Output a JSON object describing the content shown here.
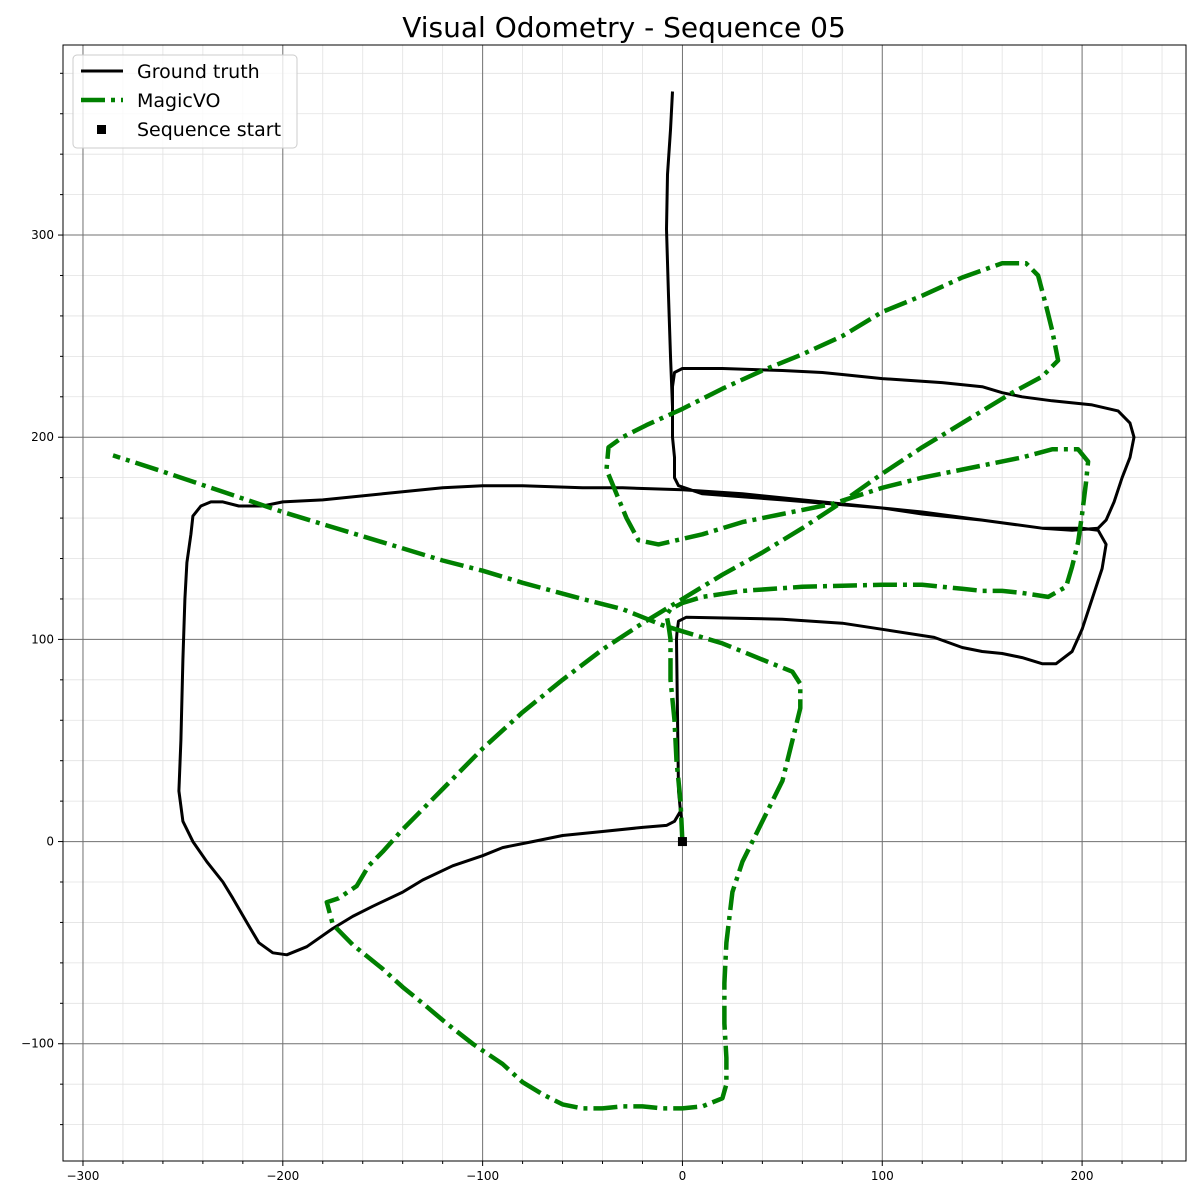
{
  "chart_data": {
    "type": "line",
    "title": "Visual Odometry - Sequence 05",
    "xlabel": "",
    "ylabel": "",
    "xlim": [
      -310,
      252
    ],
    "ylim": [
      -158,
      394
    ],
    "x_ticks": [
      -300,
      -200,
      -100,
      0,
      100,
      200
    ],
    "y_ticks": [
      -100,
      0,
      100,
      200,
      300
    ],
    "x_tick_labels": [
      "−300",
      "−200",
      "−100",
      "0",
      "100",
      "200"
    ],
    "y_tick_labels": [
      "−100",
      "0",
      "100",
      "200",
      "300"
    ],
    "grid": true,
    "minor_grid": true,
    "legend_position": "top-left",
    "colors": {
      "ground_truth": "#000000",
      "magicvo": "#008000",
      "start": "#000000"
    },
    "legend": [
      {
        "label": "Ground truth",
        "style": "solid",
        "color": "#000000"
      },
      {
        "label": "MagicVO",
        "style": "dashdot",
        "color": "#008000"
      },
      {
        "label": "Sequence start",
        "style": "marker-square",
        "color": "#000000"
      }
    ],
    "series": [
      {
        "name": "Ground truth",
        "style": "solid",
        "color": "#000000",
        "points": [
          [
            0,
            0
          ],
          [
            -0.5,
            12
          ],
          [
            -1,
            15
          ],
          [
            -2,
            25
          ],
          [
            -2.2,
            40
          ],
          [
            -2.6,
            70
          ],
          [
            -3,
            100
          ],
          [
            -2.8,
            103
          ],
          [
            -2,
            109
          ],
          [
            2,
            111
          ],
          [
            50,
            110
          ],
          [
            80,
            108
          ],
          [
            100,
            105
          ],
          [
            126,
            101
          ],
          [
            140,
            96
          ],
          [
            150,
            94
          ],
          [
            160,
            93
          ],
          [
            170,
            91
          ],
          [
            180,
            88
          ],
          [
            187,
            88
          ],
          [
            195,
            94
          ],
          [
            200,
            105
          ],
          [
            210,
            135
          ],
          [
            212,
            147
          ],
          [
            208,
            154
          ],
          [
            200,
            155
          ],
          [
            180,
            155
          ],
          [
            150,
            159
          ],
          [
            120,
            163
          ],
          [
            100,
            165
          ],
          [
            50,
            169
          ],
          [
            10,
            172
          ],
          [
            -2,
            176
          ],
          [
            -4,
            180
          ],
          [
            -4,
            190
          ],
          [
            -5,
            200
          ],
          [
            -5,
            215
          ],
          [
            -5,
            225
          ],
          [
            -4,
            232
          ],
          [
            0,
            234
          ],
          [
            20,
            234
          ],
          [
            50,
            233
          ],
          [
            70,
            232
          ],
          [
            80,
            231
          ],
          [
            100,
            229
          ],
          [
            130,
            227
          ],
          [
            150,
            225
          ],
          [
            160,
            222
          ],
          [
            170,
            220
          ],
          [
            185,
            218
          ],
          [
            205,
            216
          ],
          [
            218,
            213
          ],
          [
            224,
            207
          ],
          [
            226,
            200
          ],
          [
            224,
            190
          ],
          [
            220,
            180
          ],
          [
            216,
            168
          ],
          [
            212,
            159
          ],
          [
            208,
            155
          ],
          [
            195,
            154
          ],
          [
            180,
            155
          ],
          [
            150,
            159
          ],
          [
            120,
            162
          ],
          [
            100,
            165
          ],
          [
            60,
            169
          ],
          [
            30,
            172
          ],
          [
            0,
            174
          ],
          [
            -30,
            175
          ],
          [
            -50,
            175
          ],
          [
            -80,
            176
          ],
          [
            -100,
            176
          ],
          [
            -120,
            175
          ],
          [
            -150,
            172
          ],
          [
            -180,
            169
          ],
          [
            -200,
            168
          ],
          [
            -210,
            166
          ],
          [
            -222,
            166
          ],
          [
            -230,
            168
          ],
          [
            -236,
            168
          ],
          [
            -241,
            166
          ],
          [
            -245,
            161
          ],
          [
            -246,
            152
          ],
          [
            -248,
            138
          ],
          [
            -249,
            120
          ],
          [
            -250,
            90
          ],
          [
            -251,
            50
          ],
          [
            -252,
            25
          ],
          [
            -250,
            10
          ],
          [
            -245,
            0
          ],
          [
            -238,
            -10
          ],
          [
            -230,
            -20
          ],
          [
            -225,
            -28
          ],
          [
            -218,
            -40
          ],
          [
            -212,
            -50
          ],
          [
            -205,
            -55
          ],
          [
            -198,
            -56
          ],
          [
            -188,
            -52
          ],
          [
            -175,
            -43
          ],
          [
            -165,
            -37
          ],
          [
            -155,
            -32
          ],
          [
            -140,
            -25
          ],
          [
            -130,
            -19
          ],
          [
            -115,
            -12
          ],
          [
            -100,
            -7
          ],
          [
            -90,
            -3
          ],
          [
            -75,
            0
          ],
          [
            -60,
            3
          ],
          [
            -40,
            5
          ],
          [
            -20,
            7
          ],
          [
            -8,
            8
          ],
          [
            -4,
            10
          ],
          [
            -1,
            15
          ]
        ]
      },
      {
        "name": "Ground truth",
        "style": "solid",
        "color": "#000000",
        "points": [
          [
            -5,
            215
          ],
          [
            -6,
            240
          ],
          [
            -7,
            270
          ],
          [
            -8,
            303
          ],
          [
            -7.5,
            330
          ],
          [
            -6,
            352
          ],
          [
            -5,
            371
          ]
        ]
      },
      {
        "name": "MagicVO",
        "style": "dashdot",
        "color": "#008000",
        "points": [
          [
            0,
            0
          ],
          [
            -1,
            20
          ],
          [
            -3,
            40
          ],
          [
            -4,
            60
          ],
          [
            -6,
            80
          ],
          [
            -6,
            100
          ],
          [
            -7,
            107
          ],
          [
            -8,
            112
          ],
          [
            -6,
            115
          ],
          [
            0,
            118
          ],
          [
            10,
            121
          ],
          [
            30,
            124
          ],
          [
            60,
            126
          ],
          [
            100,
            127
          ],
          [
            120,
            127
          ],
          [
            140,
            125
          ],
          [
            150,
            124
          ],
          [
            160,
            124
          ],
          [
            170,
            123
          ],
          [
            183,
            121
          ],
          [
            192,
            126
          ],
          [
            195,
            136
          ],
          [
            198,
            148
          ],
          [
            200,
            162
          ],
          [
            202,
            178
          ],
          [
            203,
            188
          ],
          [
            198,
            194
          ],
          [
            185,
            194
          ],
          [
            170,
            190
          ],
          [
            150,
            186
          ],
          [
            120,
            180
          ],
          [
            100,
            175
          ],
          [
            75,
            167
          ],
          [
            50,
            162
          ],
          [
            30,
            158
          ],
          [
            10,
            152
          ],
          [
            -12,
            147
          ],
          [
            -22,
            149
          ],
          [
            -28,
            160
          ],
          [
            -33,
            172
          ],
          [
            -38,
            184
          ],
          [
            -37,
            195
          ],
          [
            -30,
            200
          ],
          [
            -18,
            206
          ],
          [
            0,
            214
          ],
          [
            20,
            224
          ],
          [
            40,
            233
          ],
          [
            60,
            241
          ],
          [
            80,
            250
          ],
          [
            100,
            262
          ],
          [
            120,
            270
          ],
          [
            140,
            279
          ],
          [
            160,
            286
          ],
          [
            172,
            286
          ],
          [
            178,
            280
          ],
          [
            182,
            265
          ],
          [
            185,
            253
          ],
          [
            188,
            238
          ],
          [
            180,
            230
          ],
          [
            165,
            222
          ],
          [
            150,
            213
          ],
          [
            140,
            207
          ],
          [
            120,
            195
          ],
          [
            100,
            182
          ],
          [
            80,
            168
          ],
          [
            60,
            155
          ],
          [
            40,
            143
          ],
          [
            20,
            132
          ],
          [
            0,
            120
          ],
          [
            -20,
            108
          ],
          [
            -40,
            95
          ],
          [
            -60,
            80
          ],
          [
            -80,
            64
          ],
          [
            -100,
            46
          ],
          [
            -120,
            26
          ],
          [
            -140,
            6
          ],
          [
            -150,
            -5
          ],
          [
            -157,
            -12
          ],
          [
            -163,
            -22
          ],
          [
            -172,
            -28
          ],
          [
            -178,
            -30
          ],
          [
            -175,
            -41
          ],
          [
            -165,
            -51
          ],
          [
            -150,
            -63
          ],
          [
            -140,
            -72
          ],
          [
            -130,
            -80
          ],
          [
            -118,
            -90
          ],
          [
            -105,
            -100
          ],
          [
            -90,
            -110
          ],
          [
            -80,
            -119
          ],
          [
            -70,
            -125
          ],
          [
            -60,
            -130
          ],
          [
            -50,
            -132
          ],
          [
            -40,
            -132
          ],
          [
            -30,
            -131
          ],
          [
            -20,
            -131
          ],
          [
            -10,
            -132
          ],
          [
            0,
            -132
          ],
          [
            10,
            -131
          ],
          [
            20,
            -127
          ],
          [
            22,
            -120
          ],
          [
            22,
            -107
          ],
          [
            21,
            -90
          ],
          [
            21,
            -70
          ],
          [
            22,
            -50
          ],
          [
            25,
            -25
          ],
          [
            30,
            -10
          ],
          [
            40,
            10
          ],
          [
            50,
            30
          ],
          [
            55,
            50
          ],
          [
            59,
            66
          ],
          [
            59,
            78
          ],
          [
            55,
            84
          ],
          [
            45,
            88
          ],
          [
            35,
            92
          ],
          [
            20,
            98
          ],
          [
            10,
            101
          ],
          [
            0,
            104
          ],
          [
            -10,
            107
          ],
          [
            -30,
            115
          ],
          [
            -50,
            120
          ],
          [
            -80,
            128
          ],
          [
            -100,
            134
          ],
          [
            -120,
            139
          ],
          [
            -150,
            148
          ],
          [
            -180,
            157
          ],
          [
            -200,
            163
          ],
          [
            -230,
            173
          ],
          [
            -260,
            183
          ],
          [
            -285,
            191
          ]
        ]
      }
    ],
    "start_point": {
      "name": "Sequence start",
      "x": 0,
      "y": 0
    }
  }
}
